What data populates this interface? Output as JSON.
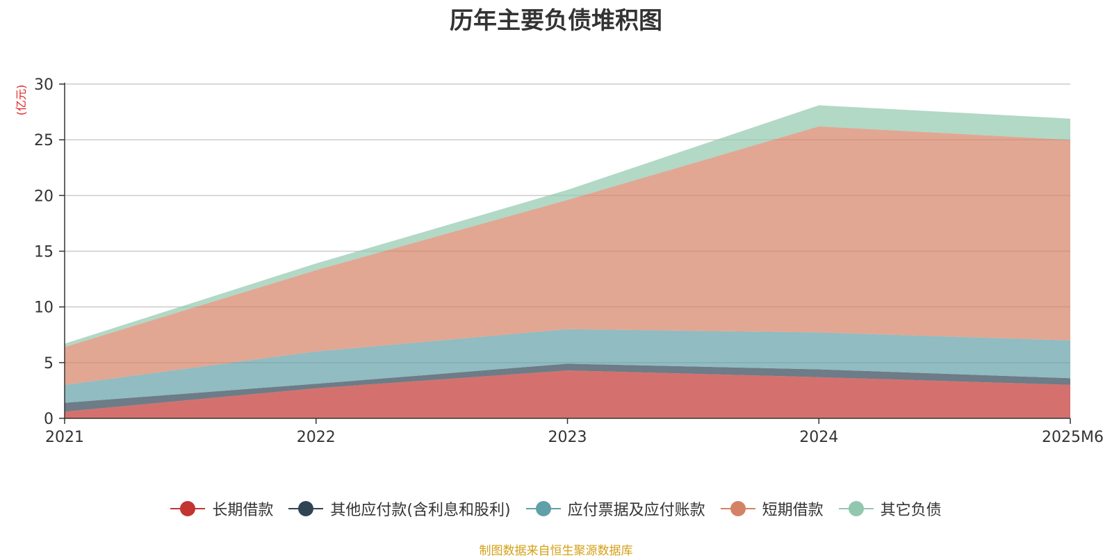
{
  "chart_data": {
    "type": "area",
    "title": "历年主要负债堆积图",
    "ylabel": "(亿元)",
    "xlabel": "",
    "stacked": true,
    "ylim": [
      0,
      30
    ],
    "yticks": [
      0,
      5,
      10,
      15,
      20,
      25,
      30
    ],
    "categories": [
      "2021",
      "2022",
      "2023",
      "2024",
      "2025M6"
    ],
    "grid": true,
    "legend_position": "bottom",
    "series": [
      {
        "name": "长期借款",
        "color": "#c23531",
        "values": [
          0.6,
          2.7,
          4.3,
          3.7,
          3.0
        ]
      },
      {
        "name": "其他应付款(含利息和股利)",
        "color": "#2f4554",
        "values": [
          0.8,
          0.4,
          0.6,
          0.7,
          0.6
        ]
      },
      {
        "name": "应付票据及应付账款",
        "color": "#61a0a8",
        "values": [
          1.6,
          2.9,
          3.1,
          3.3,
          3.4
        ]
      },
      {
        "name": "短期借款",
        "color": "#d48265",
        "values": [
          3.4,
          7.3,
          11.6,
          18.5,
          18.0
        ]
      },
      {
        "name": "其它负债",
        "color": "#91c7ae",
        "values": [
          0.3,
          0.6,
          0.9,
          1.9,
          1.9
        ]
      }
    ]
  },
  "footer": {
    "source": "制图数据来自恒生聚源数据库"
  }
}
